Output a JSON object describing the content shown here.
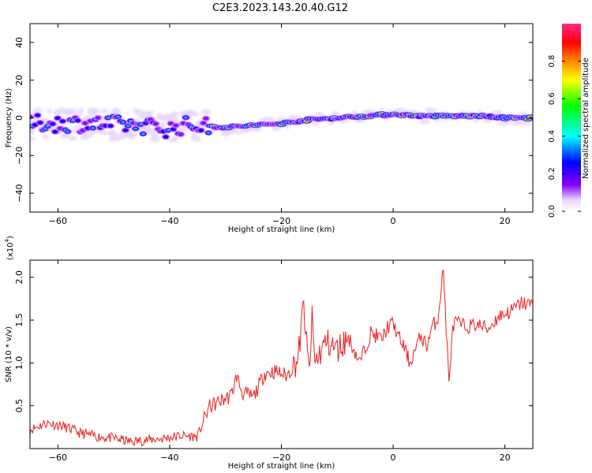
{
  "figure_title": "C2E3.2023.143.20.40.G12",
  "chart_data": [
    {
      "type": "heatmap",
      "xlabel": "Height of straight line (km)",
      "ylabel": "Frequency (Hz)",
      "xlim": [
        -65,
        25
      ],
      "ylim": [
        -50,
        50
      ],
      "xticks": [
        -60,
        -40,
        -20,
        0,
        20
      ],
      "yticks": [
        -40,
        -20,
        0,
        20,
        40
      ],
      "colorbar": {
        "label": "Normalized spectral amplitude",
        "ticks": [
          "0.0",
          "0.2",
          "0.4",
          "0.6",
          "0.8"
        ],
        "range": [
          0,
          1
        ],
        "colors": [
          "#ffffff",
          "#e8d8ff",
          "#8800ff",
          "#0000ff",
          "#00ffff",
          "#00ff00",
          "#ffff00",
          "#ff8800",
          "#ff0000",
          "#ff2a8a"
        ]
      },
      "ridge_center_hz": {
        "x": [
          -65,
          -55,
          -45,
          -40,
          -37,
          -35,
          -30,
          -25,
          -20,
          -15,
          -10,
          -5,
          0,
          5,
          10,
          15,
          20,
          25
        ],
        "y": [
          -3,
          -3,
          -4,
          -6,
          -4,
          -4,
          -5,
          -4,
          -3,
          -1,
          0,
          1,
          2,
          1,
          1,
          1,
          0,
          0
        ]
      }
    },
    {
      "type": "line",
      "xlabel": "Height of straight line (km)",
      "ylabel": "SNR (10 * v/v)",
      "multiplier_label": "(x10",
      "multiplier_exp": "4",
      "xlim": [
        -65,
        25
      ],
      "ylim": [
        0,
        2.2
      ],
      "xticks": [
        -60,
        -40,
        -20,
        0,
        20
      ],
      "yticks": [
        "0.5",
        "1.0",
        "1.5",
        "2.0"
      ],
      "line_color": "#e8211f",
      "series": [
        {
          "x": [
            -65,
            -62,
            -59,
            -56,
            -53,
            -50,
            -47,
            -44,
            -41,
            -38,
            -35,
            -33,
            -31,
            -29,
            -28,
            -27,
            -25,
            -23,
            -21,
            -19,
            -17,
            -16,
            -15.5,
            -15,
            -14.5,
            -14,
            -12,
            -10,
            -8,
            -6,
            -4,
            -2,
            -1,
            0,
            1,
            2,
            3,
            5,
            6,
            7,
            8,
            9,
            9.5,
            10,
            10.5,
            11,
            13,
            15,
            17,
            19,
            21,
            23,
            25
          ],
          "y": [
            0.22,
            0.3,
            0.26,
            0.18,
            0.14,
            0.12,
            0.08,
            0.1,
            0.12,
            0.15,
            0.14,
            0.48,
            0.55,
            0.62,
            0.85,
            0.65,
            0.6,
            0.88,
            0.9,
            0.85,
            1.05,
            1.7,
            1.2,
            0.9,
            1.5,
            1.0,
            1.25,
            1.15,
            1.3,
            1.0,
            1.35,
            1.28,
            1.42,
            1.46,
            1.3,
            1.18,
            1.0,
            1.32,
            1.2,
            1.42,
            1.52,
            2.1,
            1.4,
            0.75,
            1.3,
            1.48,
            1.42,
            1.45,
            1.4,
            1.55,
            1.6,
            1.7,
            1.68
          ]
        }
      ]
    }
  ]
}
